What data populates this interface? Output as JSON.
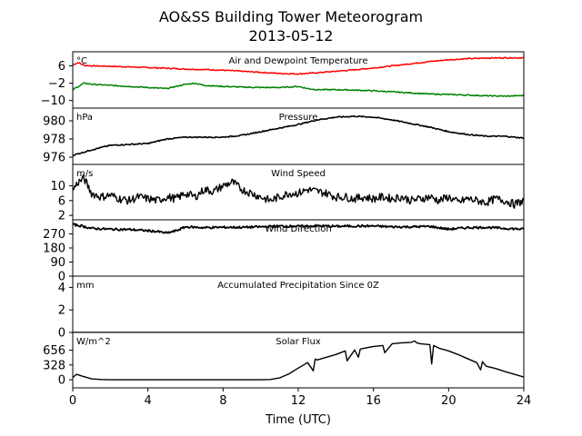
{
  "chart_data": {
    "title_line1": "AO&SS Building Tower Meteorogram",
    "title_line2": "2013-05-12",
    "xlabel": "Time (UTC)",
    "xlim": [
      0,
      24
    ],
    "xticks": [
      "0",
      "4",
      "8",
      "12",
      "16",
      "20",
      "24"
    ],
    "panels": [
      {
        "id": "temp",
        "type": "line",
        "title": "Air and Dewpoint Temperature",
        "unit": "°C",
        "ylim": [
          -13.5,
          12.5
        ],
        "yticks": [
          "6",
          "−2",
          "−10"
        ],
        "ytick_values": [
          6,
          -2,
          -10
        ],
        "series": [
          {
            "name": "Air",
            "color": "#ff0000",
            "x": [
              0,
              0.3,
              0.6,
              1,
              2,
              3,
              4,
              5,
              6,
              7,
              8,
              9,
              10,
              11,
              12,
              13,
              14,
              15,
              16,
              17,
              18,
              19,
              20,
              21,
              22,
              23,
              24
            ],
            "y": [
              6.5,
              7.5,
              6.2,
              6.0,
              5.8,
              5.5,
              5.2,
              4.9,
              4.5,
              4.3,
              4.0,
              3.5,
              3.0,
              2.5,
              2.3,
              2.8,
              3.5,
              4.2,
              5.0,
              6.0,
              7.0,
              8.0,
              8.8,
              9.3,
              9.6,
              9.7,
              9.7
            ]
          },
          {
            "name": "Dewpoint",
            "color": "#008000",
            "x": [
              0,
              0.3,
              0.6,
              1,
              2,
              3,
              4,
              5,
              6,
              6.5,
              7,
              8,
              9,
              10,
              11,
              12,
              12.5,
              13,
              14,
              15,
              16,
              17,
              18,
              19,
              20,
              21,
              22,
              23,
              24
            ],
            "y": [
              -5,
              -3.5,
              -2,
              -2.5,
              -3,
              -3.5,
              -4,
              -4.5,
              -2.5,
              -2,
              -3,
              -3.5,
              -3.8,
              -4,
              -4,
              -3.5,
              -4.5,
              -5,
              -5,
              -5.2,
              -5.5,
              -6,
              -6.5,
              -7,
              -7.2,
              -7.5,
              -7.8,
              -8,
              -7.7
            ]
          }
        ]
      },
      {
        "id": "pressure",
        "type": "line",
        "title": "Pressure",
        "unit": "hPa",
        "ylim": [
          975.2,
          981.4
        ],
        "yticks": [
          "980",
          "978",
          "976"
        ],
        "ytick_values": [
          980,
          978,
          976
        ],
        "series": [
          {
            "name": "Pressure",
            "color": "#000000",
            "x": [
              0,
              0.5,
              1,
              2,
              3,
              4,
              5,
              6,
              7,
              8,
              9,
              10,
              11,
              12,
              13,
              14,
              15,
              16,
              17,
              18,
              19,
              20,
              21,
              22,
              23,
              24
            ],
            "y": [
              976.2,
              976.5,
              976.8,
              977.3,
              977.4,
              977.5,
              978.0,
              978.2,
              978.2,
              978.2,
              978.4,
              978.8,
              979.2,
              979.6,
              980.1,
              980.4,
              980.5,
              980.4,
              980.1,
              979.7,
              979.3,
              978.8,
              978.5,
              978.3,
              978.3,
              978.1
            ]
          }
        ]
      },
      {
        "id": "wspd",
        "type": "line",
        "title": "Wind Speed",
        "unit": "m/s",
        "ylim": [
          0.8,
          15.8
        ],
        "yticks": [
          "10",
          "6",
          "2"
        ],
        "ytick_values": [
          10,
          6,
          2
        ],
        "series": [
          {
            "name": "Wind Speed",
            "color": "#000000",
            "x": [
              0,
              0.3,
              0.6,
              1,
              1.5,
              2,
              2.5,
              3,
              3.5,
              4,
              4.5,
              5,
              5.5,
              6,
              6.5,
              7,
              7.5,
              8,
              8.5,
              9,
              9.5,
              10,
              10.5,
              11,
              11.5,
              12,
              12.5,
              13,
              13.5,
              14,
              14.5,
              15,
              15.5,
              16,
              16.5,
              17,
              17.5,
              18,
              18.5,
              19,
              19.5,
              20,
              20.5,
              21,
              21.5,
              22,
              22.5,
              23,
              23.5,
              24
            ],
            "y": [
              9,
              11,
              12,
              8,
              7,
              7.5,
              6.5,
              6,
              7,
              6.5,
              6,
              7,
              6.5,
              8,
              7,
              9,
              8.5,
              10,
              11,
              9,
              8,
              7,
              6,
              7,
              8,
              8,
              9,
              8.5,
              8,
              7,
              7,
              6.5,
              7,
              6.5,
              7,
              6.5,
              7,
              6,
              6.5,
              7,
              6,
              7,
              5.5,
              6.5,
              6,
              5.5,
              6.5,
              6,
              5,
              6
            ]
          }
        ]
      },
      {
        "id": "wdir",
        "type": "line",
        "title": "Wind Direction",
        "unit": "",
        "ylim": [
          0,
          360
        ],
        "yticks": [
          "270",
          "180",
          "90",
          "0"
        ],
        "ytick_values": [
          270,
          180,
          90,
          0
        ],
        "series": [
          {
            "name": "Wind Direction",
            "color": "#000000",
            "x": [
              0,
              0.5,
              1,
              2,
              3,
              4,
              4.5,
              5,
              5.5,
              6,
              7,
              8,
              9,
              10,
              11,
              12,
              13,
              14,
              15,
              16,
              17,
              18,
              19,
              20,
              21,
              22,
              23,
              24
            ],
            "y": [
              330,
              320,
              305,
              300,
              298,
              290,
              285,
              275,
              290,
              315,
              310,
              312,
              312,
              315,
              320,
              318,
              322,
              318,
              320,
              320,
              315,
              315,
              318,
              300,
              310,
              312,
              305,
              300
            ]
          }
        ]
      },
      {
        "id": "precip",
        "type": "line",
        "title": "Accumulated Precipitation Since 0Z",
        "unit": "mm",
        "ylim": [
          0,
          5
        ],
        "yticks": [
          "4",
          "2",
          "0"
        ],
        "ytick_values": [
          4,
          2,
          0
        ],
        "series": [
          {
            "name": "Precipitation",
            "color": "#000000",
            "x": [
              0,
              24
            ],
            "y": [
              0,
              0
            ]
          }
        ]
      },
      {
        "id": "solar",
        "type": "line",
        "title": "Solar Flux",
        "unit": "W/m^2",
        "ylim": [
          -180,
          1050
        ],
        "yticks": [
          "656",
          "328",
          "0"
        ],
        "ytick_values": [
          656,
          328,
          0
        ],
        "series": [
          {
            "name": "Solar Flux",
            "color": "#000000",
            "x": [
              0,
              0.2,
              0.5,
              1,
              1.5,
              2,
              4,
              6,
              8,
              10,
              10.5,
              11,
              11.5,
              12,
              12.5,
              12.8,
              12.9,
              13,
              14,
              14.5,
              14.6,
              15,
              15.2,
              15.3,
              15.5,
              16,
              16.5,
              16.6,
              17,
              17.5,
              18,
              18.2,
              18.3,
              18.5,
              19,
              19.1,
              19.2,
              19.5,
              20,
              20.5,
              21,
              21.5,
              21.7,
              21.8,
              22,
              22.5,
              23,
              23.5,
              24
            ],
            "y": [
              50,
              120,
              80,
              20,
              5,
              0,
              0,
              0,
              0,
              0,
              5,
              40,
              130,
              260,
              380,
              200,
              460,
              440,
              560,
              640,
              420,
              660,
              500,
              680,
              700,
              740,
              760,
              600,
              800,
              820,
              830,
              860,
              820,
              800,
              780,
              350,
              760,
              700,
              640,
              560,
              470,
              380,
              220,
              400,
              300,
              250,
              180,
              120,
              60
            ]
          }
        ]
      }
    ]
  }
}
